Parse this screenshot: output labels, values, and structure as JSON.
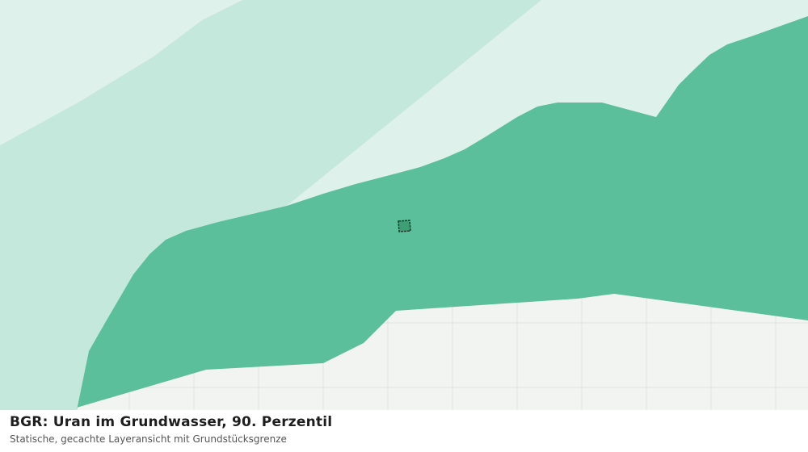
{
  "caption": {
    "title": "BGR: Uran im Grundwasser, 90. Perzentil",
    "subtitle": "Statische, gecachte Layeransicht mit Grundstücksgrenze"
  }
}
